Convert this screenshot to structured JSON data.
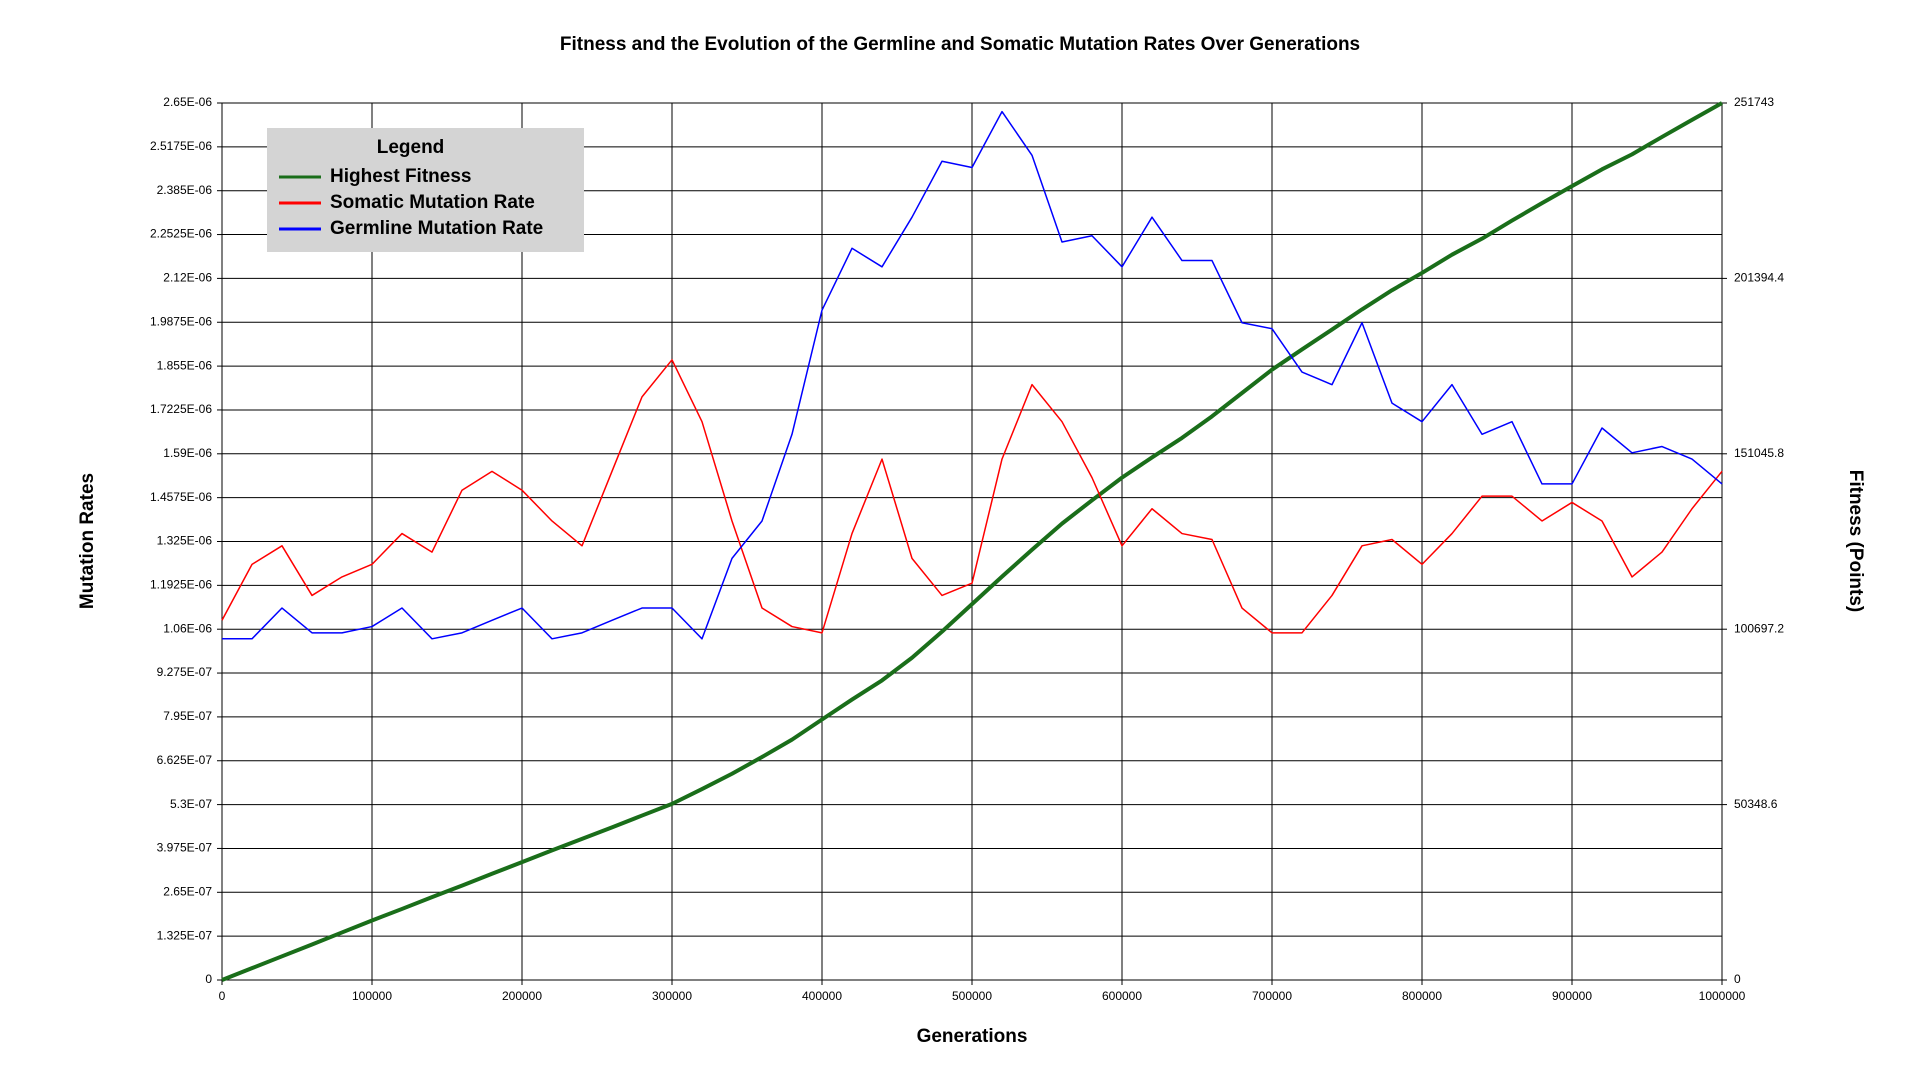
{
  "chart_data": {
    "type": "line",
    "title": "Fitness and the Evolution of the Germline and Somatic Mutation Rates Over Generations",
    "x_label": "Generations",
    "y_label": "Mutation Rates",
    "y2_label": "Fitness (Points)",
    "legend_title": "Legend",
    "legend": "upper left",
    "grid": true,
    "x": [
      0,
      20000,
      40000,
      60000,
      80000,
      100000,
      120000,
      140000,
      160000,
      180000,
      200000,
      220000,
      240000,
      260000,
      280000,
      300000,
      320000,
      340000,
      360000,
      380000,
      400000,
      420000,
      440000,
      460000,
      480000,
      500000,
      520000,
      540000,
      560000,
      580000,
      600000,
      620000,
      640000,
      660000,
      680000,
      700000,
      720000,
      740000,
      760000,
      780000,
      800000,
      820000,
      840000,
      860000,
      880000,
      900000,
      920000,
      940000,
      960000,
      980000,
      1000000
    ],
    "xlim": [
      0,
      1000000
    ],
    "xticks": [
      0,
      100000,
      200000,
      300000,
      400000,
      500000,
      600000,
      700000,
      800000,
      900000,
      1000000
    ],
    "ylim": [
      0,
      2.65e-06
    ],
    "yticks": [
      0,
      {
        "value": 1.325e-07,
        "label": "1.325E-07"
      },
      {
        "value": 2.65e-07,
        "label": "2.65E-07"
      },
      {
        "value": 3.975e-07,
        "label": "3.975E-07"
      },
      {
        "value": 5.3e-07,
        "label": "5.3E-07"
      },
      {
        "value": 6.625e-07,
        "label": "6.625E-07"
      },
      {
        "value": 7.95e-07,
        "label": "7.95E-07"
      },
      {
        "value": 9.275e-07,
        "label": "9.275E-07"
      },
      {
        "value": 1.06e-06,
        "label": "1.06E-06"
      },
      {
        "value": 1.1925e-06,
        "label": "1.1925E-06"
      },
      {
        "value": 1.325e-06,
        "label": "1.325E-06"
      },
      {
        "value": 1.4575e-06,
        "label": "1.4575E-06"
      },
      {
        "value": 1.59e-06,
        "label": "1.59E-06"
      },
      {
        "value": 1.7225e-06,
        "label": "1.7225E-06"
      },
      {
        "value": 1.855e-06,
        "label": "1.855E-06"
      },
      {
        "value": 1.9875e-06,
        "label": "1.9875E-06"
      },
      {
        "value": 2.12e-06,
        "label": "2.12E-06"
      },
      {
        "value": 2.2525e-06,
        "label": "2.2525E-06"
      },
      {
        "value": 2.385e-06,
        "label": "2.385E-06"
      },
      {
        "value": 2.5175e-06,
        "label": "2.5175E-06"
      },
      {
        "value": 2.65e-06,
        "label": "2.65E-06"
      }
    ],
    "y2lim": [
      0,
      251743
    ],
    "y2ticks": [
      0,
      50348.6,
      100697.2,
      151045.8,
      201394.4,
      251743
    ],
    "series": [
      {
        "name": "Highest Fitness",
        "color": "#1a6e1a",
        "line_width": 4,
        "axis": "y2",
        "values": [
          0,
          3400,
          6800,
          10200,
          13650,
          17090,
          20400,
          23800,
          27100,
          30500,
          33830,
          37200,
          40500,
          43800,
          47200,
          50560,
          54800,
          59200,
          64000,
          69000,
          74780,
          80500,
          86000,
          92500,
          100000,
          107890,
          115800,
          123500,
          131000,
          137700,
          144210,
          150000,
          155600,
          161800,
          168500,
          175190,
          181000,
          186700,
          192500,
          198000,
          202960,
          208200,
          212800,
          218000,
          223000,
          227890,
          232700,
          237000,
          242000,
          246900,
          251743
        ]
      },
      {
        "name": "Somatic Mutation Rate",
        "color": "#ff0000",
        "line_width": 1.5,
        "values": [
          1.087e-06,
          1.256e-06,
          1.312e-06,
          1.162e-06,
          1.218e-06,
          1.256e-06,
          1.349e-06,
          1.293e-06,
          1.48e-06,
          1.537e-06,
          1.48e-06,
          1.387e-06,
          1.312e-06,
          1.537e-06,
          1.762e-06,
          1.874e-06,
          1.687e-06,
          1.387e-06,
          1.124e-06,
          1.068e-06,
          1.049e-06,
          1.349e-06,
          1.574e-06,
          1.274e-06,
          1.162e-06,
          1.199e-06,
          1.574e-06,
          1.799e-06,
          1.687e-06,
          1.518e-06,
          1.312e-06,
          1.424e-06,
          1.349e-06,
          1.331e-06,
          1.124e-06,
          1.049e-06,
          1.049e-06,
          1.162e-06,
          1.312e-06,
          1.331e-06,
          1.256e-06,
          1.349e-06,
          1.462e-06,
          1.462e-06,
          1.387e-06,
          1.443e-06,
          1.387e-06,
          1.218e-06,
          1.293e-06,
          1.424e-06,
          1.537e-06
        ]
      },
      {
        "name": "Germline Mutation Rate",
        "color": "#0000ff",
        "line_width": 1.5,
        "values": [
          1.031e-06,
          1.031e-06,
          1.124e-06,
          1.049e-06,
          1.049e-06,
          1.068e-06,
          1.124e-06,
          1.031e-06,
          1.049e-06,
          1.087e-06,
          1.124e-06,
          1.031e-06,
          1.049e-06,
          1.087e-06,
          1.124e-06,
          1.124e-06,
          1.031e-06,
          1.274e-06,
          1.387e-06,
          1.649e-06,
          2.024e-06,
          2.211e-06,
          2.155e-06,
          2.305e-06,
          2.474e-06,
          2.455e-06,
          2.624e-06,
          2.492e-06,
          2.23e-06,
          2.249e-06,
          2.155e-06,
          2.305e-06,
          2.174e-06,
          2.174e-06,
          1.986e-06,
          1.968e-06,
          1.837e-06,
          1.799e-06,
          1.986e-06,
          1.743e-06,
          1.687e-06,
          1.799e-06,
          1.649e-06,
          1.687e-06,
          1.499e-06,
          1.499e-06,
          1.668e-06,
          1.593e-06,
          1.612e-06,
          1.574e-06,
          1.499e-06
        ]
      }
    ]
  }
}
